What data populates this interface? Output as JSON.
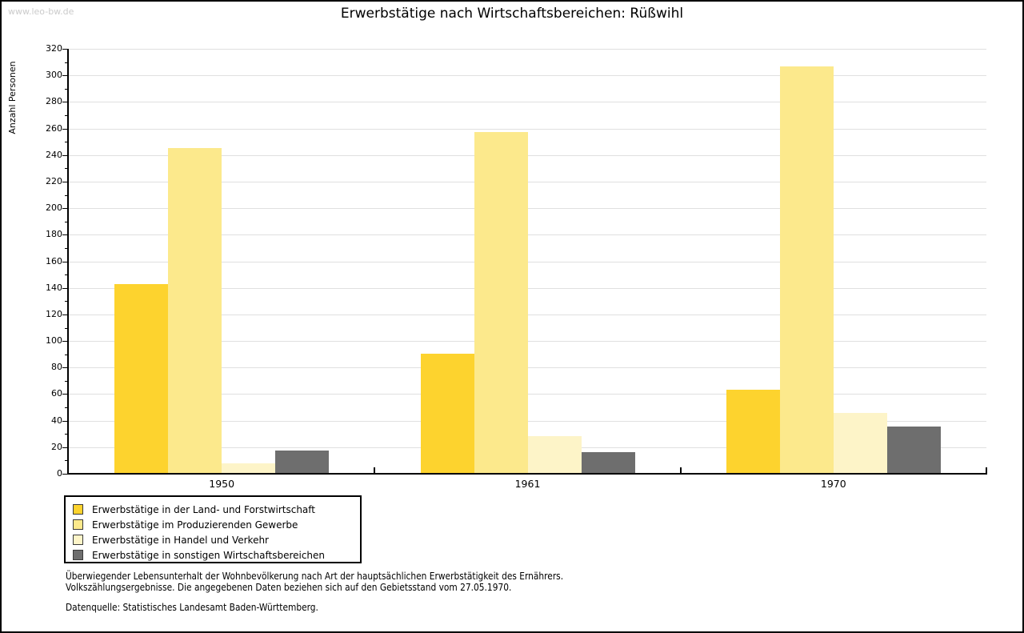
{
  "watermark": "www.leo-bw.de",
  "chart_data": {
    "type": "bar",
    "title": "Erwerbstätige nach Wirtschaftsbereichen: Rüßwihl",
    "ylabel": "Anzahl Personen",
    "xlabel": "",
    "ylim": [
      0,
      320
    ],
    "ytick_step": 20,
    "yminor_step": 10,
    "grid": "horizontal-major",
    "legend_position": "bottom-left",
    "categories": [
      "1950",
      "1961",
      "1970"
    ],
    "series": [
      {
        "name": "Erwerbstätige in der Land- und Forstwirtschaft",
        "color": "#FDD32E",
        "values": [
          142,
          90,
          63
        ]
      },
      {
        "name": "Erwerbstätige im Produzierenden Gewerbe",
        "color": "#FCE98C",
        "values": [
          245,
          257,
          306
        ]
      },
      {
        "name": "Erwerbstätige in Handel und Verkehr",
        "color": "#FDF4C8",
        "values": [
          7,
          28,
          45
        ]
      },
      {
        "name": "Erwerbstätige in sonstigen Wirtschaftsbereichen",
        "color": "#6E6E6E",
        "values": [
          17,
          16,
          35
        ]
      }
    ]
  },
  "footnotes": {
    "lines": [
      "Überwiegender Lebensunterhalt der Wohnbevölkerung nach Art der hauptsächlichen Erwerbstätigkeit des Ernährers.",
      "Volkszählungsergebnisse. Die angegebenen Daten beziehen sich auf den Gebietsstand vom 27.05.1970."
    ],
    "source": "Datenquelle: Statistisches Landesamt Baden-Württemberg."
  },
  "colors": {
    "grid": "#E0E0E0",
    "axis": "#000000",
    "watermark": "#CBCBCB",
    "background": "#FFFFFF"
  }
}
